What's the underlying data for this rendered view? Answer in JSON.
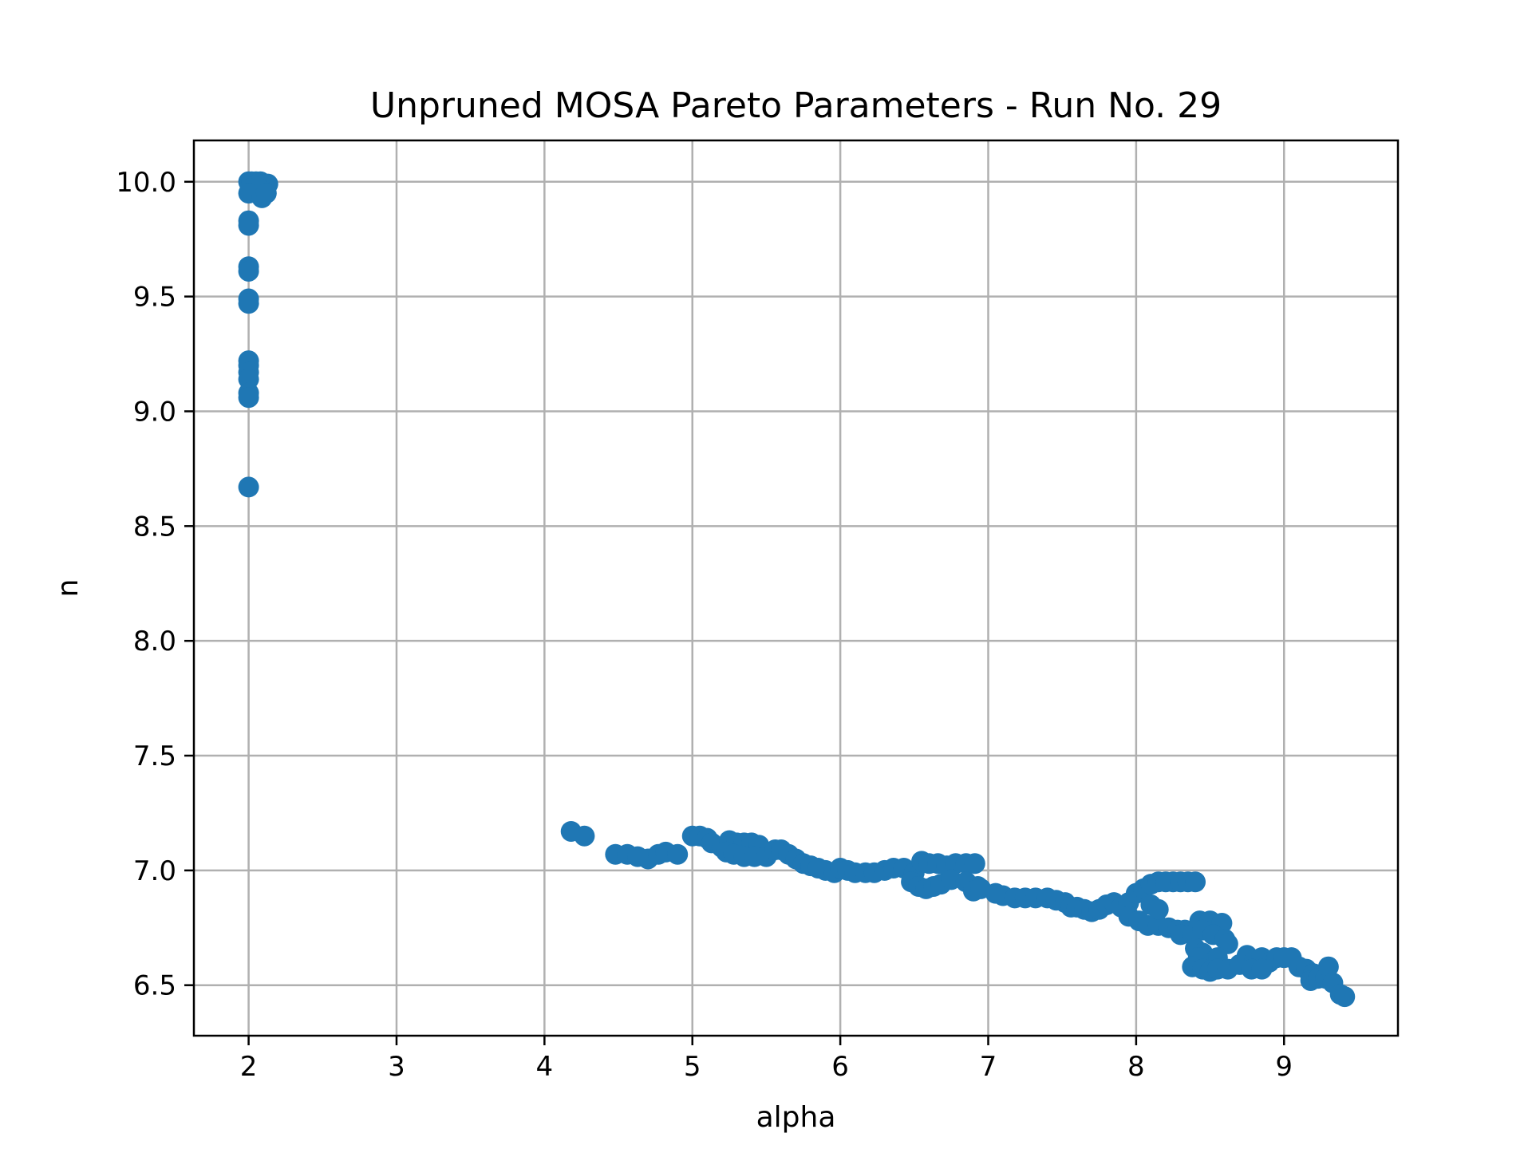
{
  "chart_data": {
    "type": "scatter",
    "title": "Unpruned MOSA Pareto Parameters - Run No. 29",
    "xlabel": "alpha",
    "ylabel": "n",
    "xlim": [
      1.63,
      9.77
    ],
    "ylim": [
      6.28,
      10.18
    ],
    "xticks": [
      2,
      3,
      4,
      5,
      6,
      7,
      8,
      9
    ],
    "yticks": [
      6.5,
      7.0,
      7.5,
      8.0,
      8.5,
      9.0,
      9.5,
      10.0
    ],
    "grid": true,
    "legend": "none",
    "series": [
      {
        "color": "#1f77b4",
        "points": [
          [
            2.0,
            10.0
          ],
          [
            2.02,
            10.0
          ],
          [
            2.05,
            10.0
          ],
          [
            2.08,
            10.0
          ],
          [
            2.11,
            9.99
          ],
          [
            2.13,
            9.99
          ],
          [
            2.1,
            9.96
          ],
          [
            2.07,
            9.97
          ],
          [
            2.04,
            9.98
          ],
          [
            2.01,
            9.97
          ],
          [
            2.0,
            9.95
          ],
          [
            2.09,
            9.93
          ],
          [
            2.12,
            9.95
          ],
          [
            2.0,
            9.83
          ],
          [
            2.0,
            9.81
          ],
          [
            2.0,
            9.63
          ],
          [
            2.0,
            9.61
          ],
          [
            2.0,
            9.49
          ],
          [
            2.0,
            9.47
          ],
          [
            2.0,
            9.22
          ],
          [
            2.0,
            9.2
          ],
          [
            2.0,
            9.17
          ],
          [
            2.0,
            9.14
          ],
          [
            2.0,
            9.08
          ],
          [
            2.0,
            9.06
          ],
          [
            2.0,
            8.67
          ],
          [
            4.18,
            7.17
          ],
          [
            4.27,
            7.15
          ],
          [
            4.48,
            7.07
          ],
          [
            4.56,
            7.07
          ],
          [
            4.63,
            7.06
          ],
          [
            4.7,
            7.05
          ],
          [
            4.77,
            7.07
          ],
          [
            4.82,
            7.08
          ],
          [
            4.9,
            7.07
          ],
          [
            5.0,
            7.15
          ],
          [
            5.05,
            7.15
          ],
          [
            5.1,
            7.14
          ],
          [
            5.13,
            7.12
          ],
          [
            5.2,
            7.1
          ],
          [
            5.25,
            7.13
          ],
          [
            5.3,
            7.12
          ],
          [
            5.35,
            7.12
          ],
          [
            5.4,
            7.12
          ],
          [
            5.45,
            7.11
          ],
          [
            5.23,
            7.08
          ],
          [
            5.28,
            7.07
          ],
          [
            5.35,
            7.06
          ],
          [
            5.42,
            7.06
          ],
          [
            5.5,
            7.06
          ],
          [
            5.56,
            7.09
          ],
          [
            5.6,
            7.09
          ],
          [
            5.65,
            7.07
          ],
          [
            5.7,
            7.05
          ],
          [
            5.75,
            7.03
          ],
          [
            5.8,
            7.02
          ],
          [
            5.85,
            7.01
          ],
          [
            5.9,
            7.0
          ],
          [
            5.96,
            6.99
          ],
          [
            6.0,
            7.01
          ],
          [
            6.05,
            7.0
          ],
          [
            6.1,
            6.99
          ],
          [
            6.17,
            6.99
          ],
          [
            6.23,
            6.99
          ],
          [
            6.3,
            7.0
          ],
          [
            6.36,
            7.01
          ],
          [
            6.43,
            7.01
          ],
          [
            6.5,
            6.99
          ],
          [
            6.55,
            7.04
          ],
          [
            6.6,
            7.03
          ],
          [
            6.66,
            7.03
          ],
          [
            6.72,
            7.02
          ],
          [
            6.78,
            7.03
          ],
          [
            6.85,
            7.03
          ],
          [
            6.91,
            7.03
          ],
          [
            6.48,
            6.95
          ],
          [
            6.53,
            6.93
          ],
          [
            6.58,
            6.92
          ],
          [
            6.63,
            6.93
          ],
          [
            6.68,
            6.94
          ],
          [
            6.75,
            6.96
          ],
          [
            6.85,
            6.95
          ],
          [
            6.93,
            6.93
          ],
          [
            6.9,
            6.91
          ],
          [
            6.95,
            6.92
          ],
          [
            7.05,
            6.9
          ],
          [
            7.1,
            6.89
          ],
          [
            7.18,
            6.88
          ],
          [
            7.25,
            6.88
          ],
          [
            7.32,
            6.88
          ],
          [
            7.4,
            6.88
          ],
          [
            7.46,
            6.87
          ],
          [
            7.52,
            6.86
          ],
          [
            7.56,
            6.84
          ],
          [
            7.6,
            6.84
          ],
          [
            7.65,
            6.83
          ],
          [
            7.7,
            6.82
          ],
          [
            7.75,
            6.83
          ],
          [
            7.8,
            6.85
          ],
          [
            7.85,
            6.86
          ],
          [
            7.9,
            6.84
          ],
          [
            7.95,
            6.86
          ],
          [
            8.0,
            6.9
          ],
          [
            8.05,
            6.92
          ],
          [
            8.1,
            6.94
          ],
          [
            8.15,
            6.95
          ],
          [
            8.2,
            6.95
          ],
          [
            8.25,
            6.95
          ],
          [
            8.3,
            6.95
          ],
          [
            8.35,
            6.95
          ],
          [
            8.4,
            6.95
          ],
          [
            7.95,
            6.8
          ],
          [
            8.02,
            6.78
          ],
          [
            8.08,
            6.76
          ],
          [
            8.15,
            6.76
          ],
          [
            8.22,
            6.75
          ],
          [
            8.28,
            6.74
          ],
          [
            8.33,
            6.74
          ],
          [
            8.1,
            6.85
          ],
          [
            8.15,
            6.83
          ],
          [
            8.3,
            6.72
          ],
          [
            8.38,
            6.72
          ],
          [
            8.43,
            6.78
          ],
          [
            8.5,
            6.78
          ],
          [
            8.58,
            6.77
          ],
          [
            8.45,
            6.74
          ],
          [
            8.52,
            6.72
          ],
          [
            8.6,
            6.7
          ],
          [
            8.62,
            6.68
          ],
          [
            8.4,
            6.66
          ],
          [
            8.45,
            6.64
          ],
          [
            8.55,
            6.62
          ],
          [
            8.42,
            6.62
          ],
          [
            8.38,
            6.58
          ],
          [
            8.45,
            6.57
          ],
          [
            8.5,
            6.56
          ],
          [
            8.55,
            6.57
          ],
          [
            8.62,
            6.57
          ],
          [
            8.7,
            6.59
          ],
          [
            8.75,
            6.63
          ],
          [
            8.8,
            6.61
          ],
          [
            8.85,
            6.62
          ],
          [
            8.9,
            6.6
          ],
          [
            8.78,
            6.57
          ],
          [
            8.85,
            6.57
          ],
          [
            8.95,
            6.62
          ],
          [
            9.0,
            6.62
          ],
          [
            9.05,
            6.62
          ],
          [
            9.1,
            6.58
          ],
          [
            9.15,
            6.57
          ],
          [
            9.2,
            6.55
          ],
          [
            9.18,
            6.52
          ],
          [
            9.23,
            6.53
          ],
          [
            9.28,
            6.53
          ],
          [
            9.3,
            6.58
          ],
          [
            9.33,
            6.51
          ],
          [
            9.38,
            6.46
          ],
          [
            9.41,
            6.45
          ]
        ]
      }
    ]
  }
}
